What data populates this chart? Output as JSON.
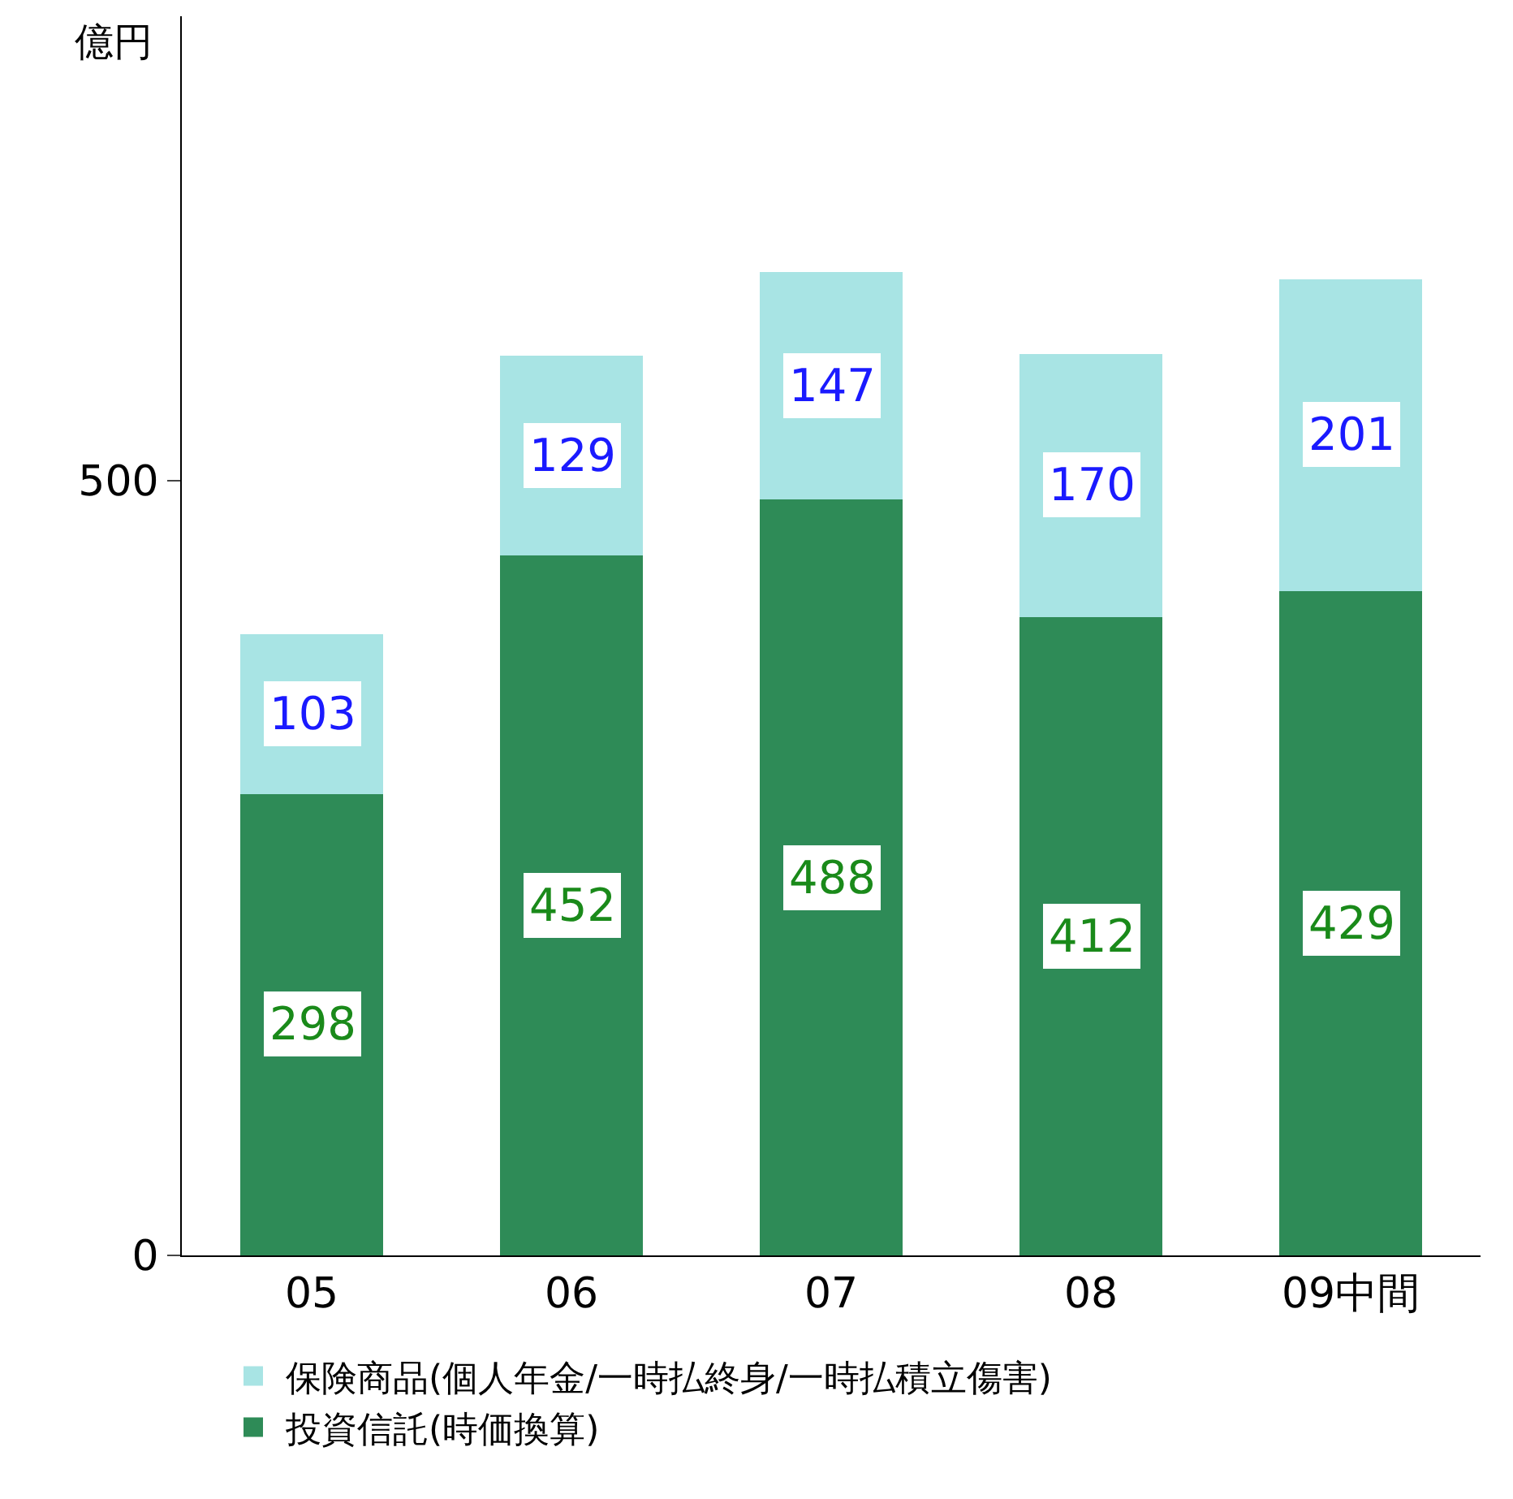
{
  "chart_data": {
    "type": "bar",
    "stacked": true,
    "ylabel": "億円",
    "categories": [
      "05",
      "06",
      "07",
      "08",
      "09中間"
    ],
    "series": [
      {
        "name": "投資信託(時価換算)",
        "color": "#2e8b57",
        "values": [
          298,
          452,
          488,
          412,
          429
        ]
      },
      {
        "name": "保険商品(個人年金/一時払終身/一時払積立傷害)",
        "color": "#a8e4e4",
        "values": [
          103,
          129,
          147,
          170,
          201
        ]
      }
    ],
    "ylim": [
      0,
      800
    ],
    "yticks": [
      0,
      500
    ],
    "data_labels": true,
    "legend": "bottom"
  }
}
